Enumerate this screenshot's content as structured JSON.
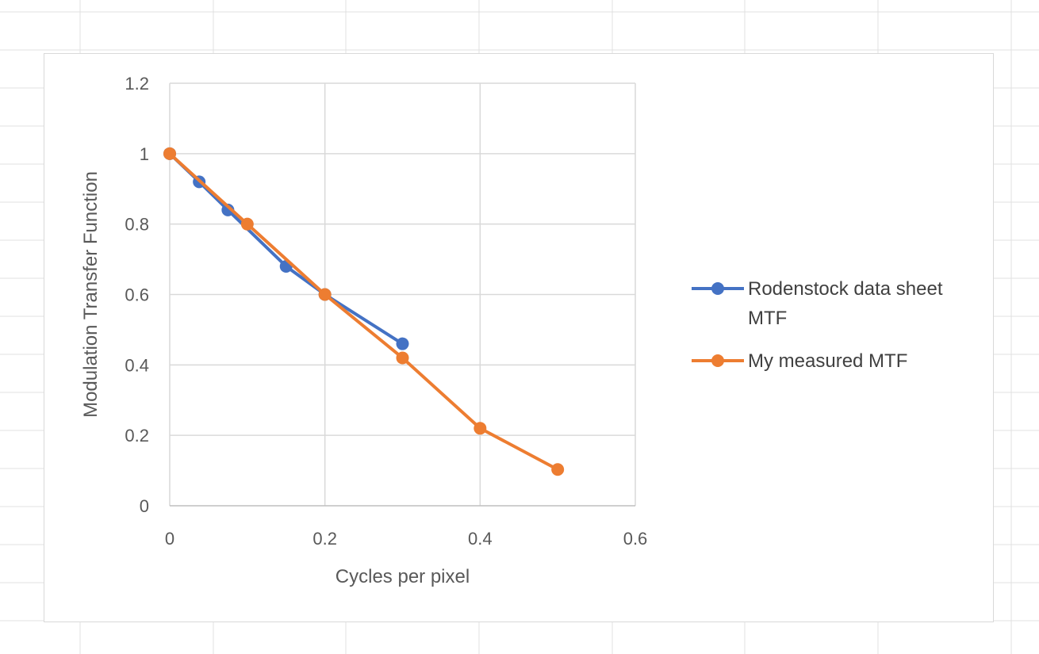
{
  "chart_data": {
    "type": "line",
    "title": "",
    "xlabel": "Cycles per pixel",
    "ylabel": "Modulation Transfer Function",
    "xlim": [
      0,
      0.6
    ],
    "ylim": [
      0,
      1.2
    ],
    "x_ticks": [
      "0",
      "0.2",
      "0.4",
      "0.6"
    ],
    "y_ticks": [
      "0",
      "0.2",
      "0.4",
      "0.6",
      "0.8",
      "1",
      "1.2"
    ],
    "grid": true,
    "legend_position": "right",
    "series": [
      {
        "name": "Rodenstock data sheet MTF",
        "legend_lines": [
          "Rodenstock data sheet",
          "MTF"
        ],
        "color": "#4472C4",
        "points": [
          [
            0,
            1
          ],
          [
            0.038,
            0.92
          ],
          [
            0.075,
            0.84
          ],
          [
            0.15,
            0.68
          ],
          [
            0.2,
            0.6
          ],
          [
            0.3,
            0.46
          ]
        ]
      },
      {
        "name": "My measured MTF",
        "legend_lines": [
          "My measured MTF"
        ],
        "color": "#ED7D31",
        "points": [
          [
            0,
            1
          ],
          [
            0.1,
            0.8
          ],
          [
            0.2,
            0.6
          ],
          [
            0.3,
            0.42
          ],
          [
            0.4,
            0.22
          ],
          [
            0.5,
            0.103
          ]
        ]
      }
    ]
  }
}
